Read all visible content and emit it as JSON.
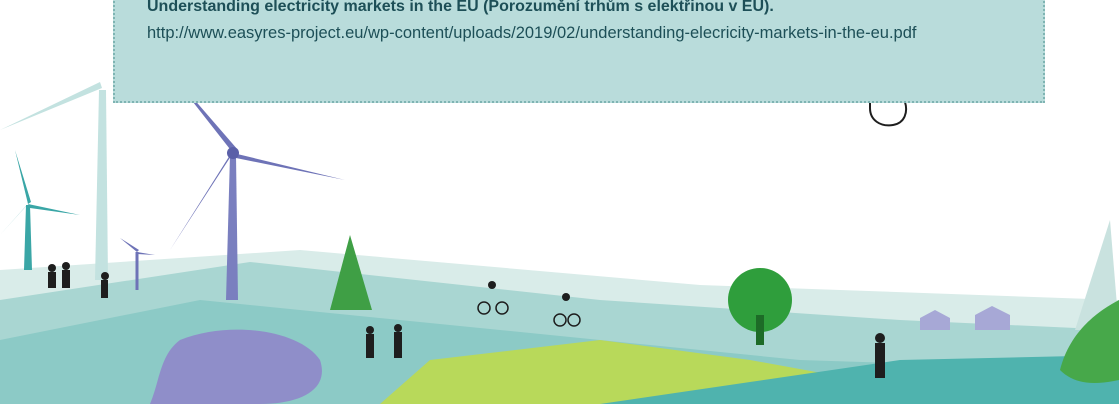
{
  "box": {
    "title": "Understanding electricity markets in the EU (Porozumění trhům s elektřinou v EU).",
    "link": "http://www.easyres-project.eu/wp-content/uploads/2019/02/understanding-elecricity-markets-in-the-eu.pdf"
  }
}
